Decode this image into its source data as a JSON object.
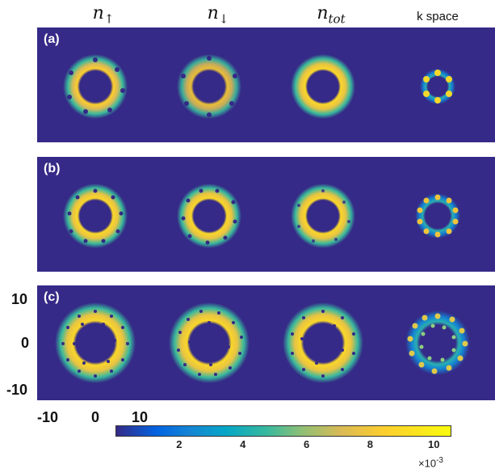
{
  "columns": {
    "n_up": {
      "base": "n",
      "sub": "↑"
    },
    "n_down": {
      "base": "n",
      "sub": "↓"
    },
    "n_tot": {
      "base": "n",
      "sub": "tot"
    },
    "kspace": "k space"
  },
  "rows": [
    {
      "label": "(a)"
    },
    {
      "label": "(b)"
    },
    {
      "label": "(c)"
    }
  ],
  "axis": {
    "y_ticks": [
      "10",
      "0",
      "-10"
    ],
    "x_ticks": [
      "-10",
      "0",
      "10"
    ]
  },
  "colorbar": {
    "ticks": [
      "2",
      "4",
      "6",
      "8",
      "10"
    ],
    "tick_values": [
      2,
      4,
      6,
      8,
      10
    ],
    "range": [
      0,
      10.5
    ],
    "multiplier_base": "×10",
    "multiplier_exp": "-3",
    "colormap": "parula"
  }
}
